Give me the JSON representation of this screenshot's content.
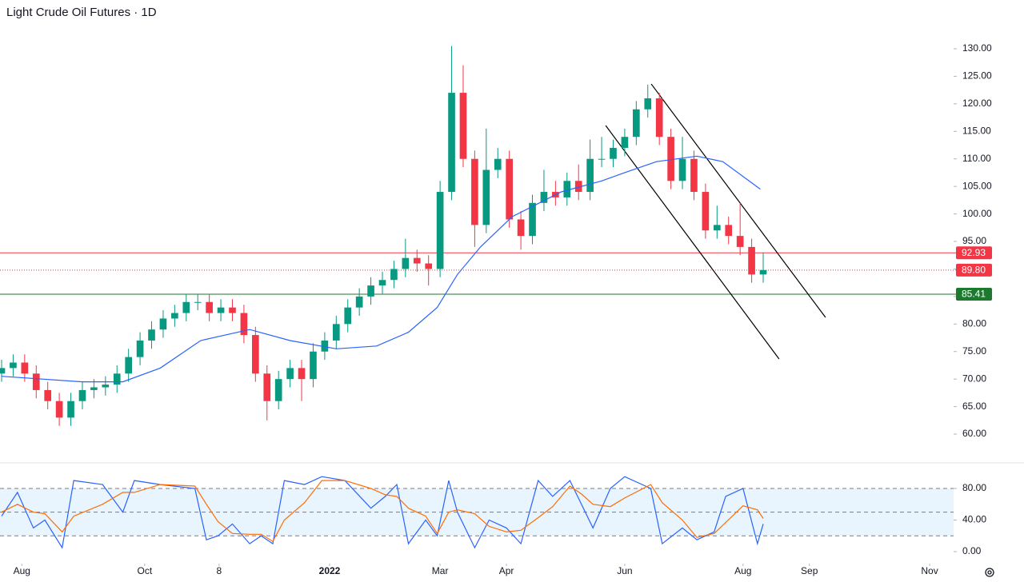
{
  "chart_data": {
    "type": "candlestick",
    "title": "Light Crude Oil Futures · 1D",
    "x": [
      0,
      4,
      8,
      12,
      16,
      20,
      24,
      28,
      32,
      36,
      40,
      44,
      48,
      52,
      56,
      60,
      64,
      68,
      72,
      76,
      80,
      84,
      88,
      92,
      96,
      100,
      104,
      108,
      112,
      116,
      120,
      124,
      128,
      132,
      136,
      140,
      144,
      148,
      152,
      156,
      160,
      164,
      168,
      172,
      176,
      180,
      184,
      188,
      192,
      196,
      200,
      204,
      208,
      212,
      216,
      220,
      224,
      228,
      232,
      236,
      240,
      244,
      248,
      252,
      256,
      260,
      264
    ],
    "open": [
      71,
      72,
      73,
      71,
      68,
      66,
      63,
      66,
      68,
      68.5,
      69,
      71,
      74,
      77,
      79,
      81,
      82,
      84,
      84,
      82,
      83,
      82,
      78,
      71,
      66,
      70,
      72,
      70,
      75,
      77,
      80,
      83,
      85,
      87,
      88,
      90,
      92,
      91,
      90,
      104,
      122,
      110,
      98,
      108,
      110,
      99,
      96,
      102,
      104,
      103,
      106,
      104,
      110,
      110,
      112,
      114,
      119,
      121,
      114,
      106,
      110,
      104,
      97,
      98,
      96,
      94,
      89
    ],
    "high": [
      73.5,
      74.5,
      74.5,
      72.5,
      69.5,
      67.5,
      67.5,
      69.5,
      70,
      70.5,
      72.5,
      75.5,
      78.5,
      80.5,
      82.5,
      83.5,
      85.5,
      85.5,
      85.5,
      84.5,
      84.5,
      83.5,
      79.5,
      72.5,
      71.5,
      73.5,
      73.5,
      76.5,
      78.5,
      81.5,
      84.5,
      86.5,
      88.5,
      89.5,
      91.5,
      95.5,
      93.5,
      92.5,
      106,
      130.5,
      127,
      111.5,
      115.5,
      112,
      111.5,
      100.5,
      103.5,
      108,
      106,
      107.5,
      109,
      113.5,
      114,
      113.5,
      115.5,
      120.5,
      123.5,
      122,
      115.5,
      114,
      111.5,
      105.5,
      101.5,
      99.5,
      102,
      95.5,
      93
    ],
    "low": [
      69.5,
      70.5,
      69.5,
      66.5,
      64.5,
      61.5,
      61.5,
      64.5,
      66.5,
      67,
      67.5,
      69.5,
      72.5,
      75.5,
      77.5,
      79.5,
      80.5,
      82.5,
      80.5,
      80.5,
      80.5,
      76.5,
      69.5,
      62.5,
      64.5,
      68.5,
      66,
      68.5,
      73.5,
      75.5,
      78.5,
      81.5,
      83.5,
      85.5,
      86.5,
      88.5,
      89.5,
      87,
      88.5,
      102.5,
      108.5,
      94,
      96.5,
      106.5,
      97.5,
      93.5,
      94.5,
      100.5,
      101.5,
      101.5,
      102.5,
      102.5,
      108.5,
      108.5,
      110.5,
      112.5,
      117.5,
      112.5,
      104.5,
      104.5,
      102.5,
      95.5,
      95.5,
      94.5,
      92.5,
      87.5,
      87.5
    ],
    "close": [
      72,
      73,
      71,
      68,
      66,
      63,
      66,
      68,
      68.5,
      69,
      71,
      74,
      77,
      79,
      81,
      82,
      84,
      84,
      82,
      83,
      82,
      78,
      71,
      66,
      70,
      72,
      70,
      75,
      77,
      80,
      83,
      85,
      87,
      88,
      90,
      92,
      91,
      90,
      104,
      122,
      110,
      98,
      108,
      110,
      99,
      96,
      102,
      104,
      103,
      106,
      104,
      110,
      110,
      112,
      114,
      119,
      121,
      114,
      106,
      110,
      104,
      97,
      98,
      96,
      94,
      89,
      89.8
    ],
    "up_color": "#089981",
    "down_color": "#f23645",
    "xlim": [
      0,
      330
    ],
    "xticks": [
      {
        "value": 7,
        "label": "Aug"
      },
      {
        "value": 49.6,
        "label": "Oct"
      },
      {
        "value": 75.4,
        "label": "8"
      },
      {
        "value": 113.7,
        "label": "2022"
      },
      {
        "value": 152,
        "label": "Mar"
      },
      {
        "value": 175,
        "label": "Apr"
      },
      {
        "value": 216,
        "label": "Jun"
      },
      {
        "value": 257,
        "label": "Aug"
      },
      {
        "value": 280,
        "label": "Sep"
      },
      {
        "value": 321.7,
        "label": "Nov"
      }
    ],
    "ylim": [
      54.92,
      138.86
    ],
    "yticks": [
      {
        "value": 60,
        "label": "60.00"
      },
      {
        "value": 65,
        "label": "65.00"
      },
      {
        "value": 70,
        "label": "70.00"
      },
      {
        "value": 75,
        "label": "75.00"
      },
      {
        "value": 80,
        "label": "80.00"
      },
      {
        "value": 85,
        "label": "85.00"
      },
      {
        "value": 90,
        "label": "90.00"
      },
      {
        "value": 95,
        "label": "95.00"
      },
      {
        "value": 100,
        "label": "100.00"
      },
      {
        "value": 105,
        "label": "105.00"
      },
      {
        "value": 110,
        "label": "110.00"
      },
      {
        "value": 115,
        "label": "115.00"
      },
      {
        "value": 120,
        "label": "120.00"
      },
      {
        "value": 125,
        "label": "125.00"
      },
      {
        "value": 130,
        "label": "130.00"
      }
    ],
    "moving_average": {
      "color": "#2962ff",
      "x": [
        0,
        28,
        42,
        55,
        69,
        86,
        100,
        116,
        130,
        141,
        151,
        158,
        166,
        177,
        194,
        208,
        216,
        227,
        241,
        250,
        263
      ],
      "values": [
        70.5,
        69.5,
        69.5,
        72,
        77,
        79,
        77,
        75.5,
        76,
        78.5,
        83,
        89,
        94,
        99.5,
        104,
        106,
        107.5,
        109.5,
        110.5,
        109.5,
        104.5
      ]
    },
    "horizontal_lines": [
      {
        "value": 92.93,
        "label": "92.93",
        "color": "#f23645",
        "style": "solid"
      },
      {
        "value": 89.8,
        "label": "89.80",
        "color": "#f23645",
        "style": "dotted"
      },
      {
        "value": 85.41,
        "label": "85.41",
        "color": "#1b7a2e",
        "style": "solid"
      }
    ],
    "trend_lines": [
      {
        "color": "#000000",
        "points": [
          [
            225.2,
            123.6
          ],
          [
            285.6,
            81.2
          ]
        ]
      },
      {
        "color": "#000000",
        "points": [
          [
            209.4,
            116.06
          ],
          [
            269.5,
            73.65
          ]
        ]
      }
    ],
    "oscillator": {
      "type": "line",
      "x": [
        0,
        5.5,
        11,
        15,
        21,
        25,
        35,
        42,
        46,
        55,
        67,
        71,
        75,
        80,
        86,
        90,
        94,
        98,
        105,
        111,
        119,
        128,
        133,
        137,
        141,
        147,
        151,
        155,
        158,
        164,
        169,
        175,
        180,
        186,
        191,
        197,
        201,
        205,
        211,
        216,
        225,
        229,
        236,
        241,
        247,
        251,
        257,
        262,
        264
      ],
      "series": [
        {
          "color": "#2962ff",
          "values": [
            45,
            75,
            30,
            40,
            5,
            90,
            85,
            50,
            90,
            85,
            80,
            15,
            20,
            35,
            10,
            20,
            10,
            90,
            85,
            95,
            90,
            55,
            70,
            85,
            10,
            40,
            20,
            90,
            50,
            5,
            40,
            30,
            10,
            90,
            70,
            90,
            60,
            30,
            80,
            95,
            80,
            10,
            30,
            15,
            25,
            70,
            80,
            10,
            35
          ]
        },
        {
          "color": "#ff6d00",
          "values": [
            50,
            60,
            50,
            48,
            25,
            45,
            60,
            75,
            75,
            85,
            83,
            60,
            38,
            23,
            22,
            22,
            13,
            40,
            62,
            90,
            90,
            80,
            72,
            70,
            55,
            45,
            23,
            50,
            53,
            48,
            32,
            25,
            27,
            43,
            57,
            83,
            73,
            60,
            57,
            68,
            85,
            62,
            40,
            18,
            23,
            37,
            58,
            53,
            42
          ]
        }
      ],
      "ylim": [
        -15.2,
        111.4
      ],
      "yticks": [
        {
          "value": 0,
          "label": "0.00"
        },
        {
          "value": 40,
          "label": "40.00"
        },
        {
          "value": 80,
          "label": "80.00"
        }
      ],
      "levels": [
        20,
        50,
        80
      ],
      "band": [
        20,
        80
      ],
      "band_color": "#2196f3"
    }
  }
}
